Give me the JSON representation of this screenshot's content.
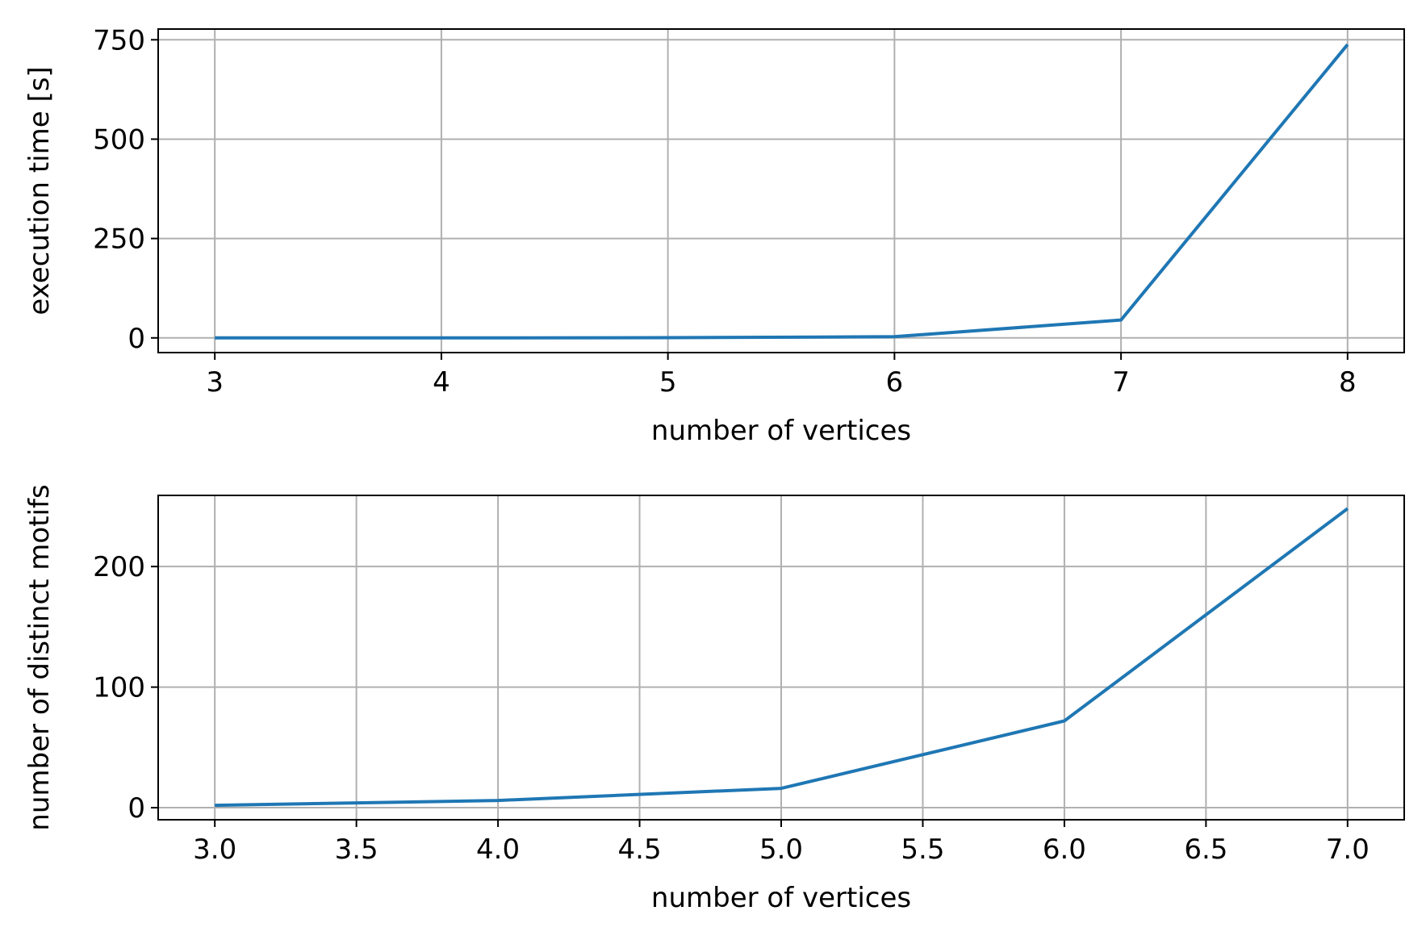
{
  "chart_data": [
    {
      "type": "line",
      "xlabel": "number of vertices",
      "ylabel": "execution time [s]",
      "xlim": [
        2.75,
        8.25
      ],
      "ylim": [
        -37,
        777
      ],
      "xticks": [
        3,
        4,
        5,
        6,
        7,
        8
      ],
      "xtick_labels": [
        "3",
        "4",
        "5",
        "6",
        "7",
        "8"
      ],
      "yticks": [
        0,
        250,
        500,
        750
      ],
      "ytick_labels": [
        "0",
        "250",
        "500",
        "750"
      ],
      "grid": true,
      "series": [
        {
          "color": "#1f77b4",
          "x": [
            3,
            4,
            5,
            6,
            7,
            8
          ],
          "y": [
            0,
            0,
            0.5,
            3,
            45,
            738
          ]
        }
      ]
    },
    {
      "type": "line",
      "xlabel": "number of vertices",
      "ylabel": "number of distinct motifs",
      "xlim": [
        2.8,
        7.2
      ],
      "ylim": [
        -10,
        259
      ],
      "xticks": [
        3.0,
        3.5,
        4.0,
        4.5,
        5.0,
        5.5,
        6.0,
        6.5,
        7.0
      ],
      "xtick_labels": [
        "3.0",
        "3.5",
        "4.0",
        "4.5",
        "5.0",
        "5.5",
        "6.0",
        "6.5",
        "7.0"
      ],
      "yticks": [
        0,
        100,
        200
      ],
      "ytick_labels": [
        "0",
        "100",
        "200"
      ],
      "grid": true,
      "series": [
        {
          "color": "#1f77b4",
          "x": [
            3,
            4,
            5,
            6,
            7
          ],
          "y": [
            2,
            6,
            16,
            72,
            248
          ]
        }
      ]
    }
  ]
}
